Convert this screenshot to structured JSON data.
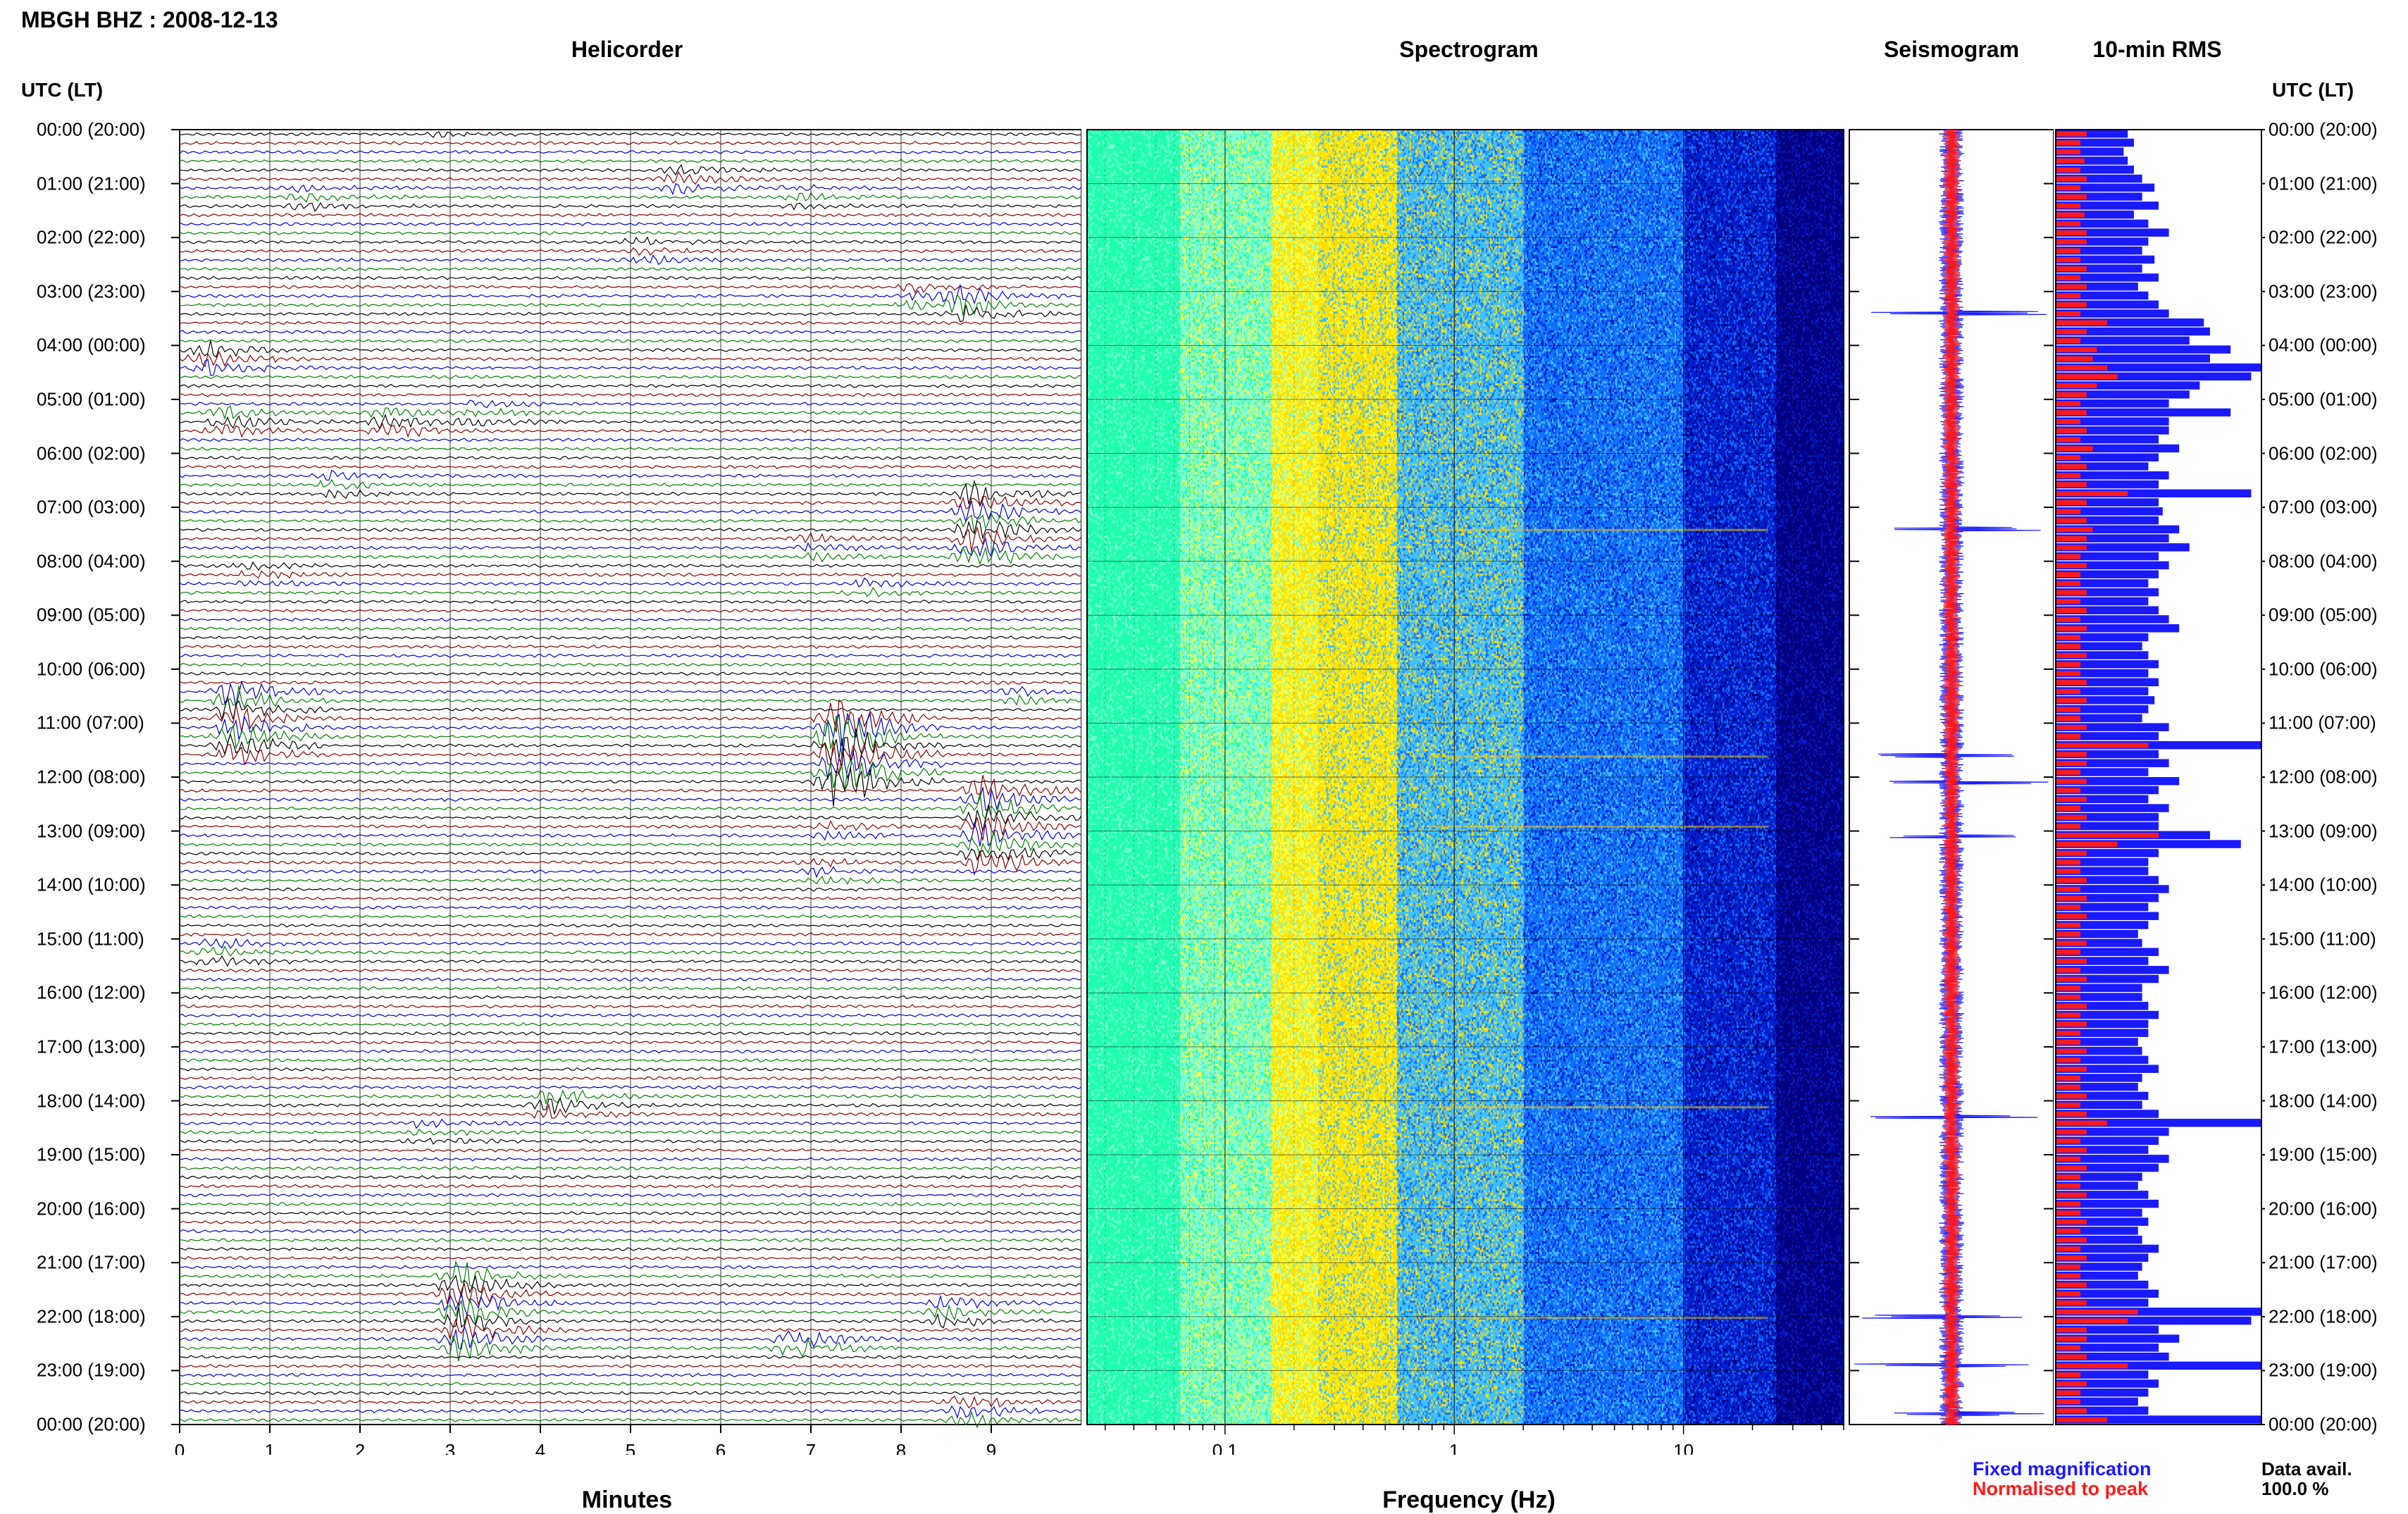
{
  "header": {
    "title": "MBGH BHZ : 2008-12-13",
    "helicorder_title": "Helicorder",
    "spectrogram_title": "Spectrogram",
    "seismogram_title": "Seismogram",
    "rms_title": "10-min RMS",
    "utc_label_left": "UTC (LT)",
    "utc_label_right": "UTC (LT)"
  },
  "time_labels": [
    "00:00 (20:00)",
    "01:00 (21:00)",
    "02:00 (22:00)",
    "03:00 (23:00)",
    "04:00 (00:00)",
    "05:00 (01:00)",
    "06:00 (02:00)",
    "07:00 (03:00)",
    "08:00 (04:00)",
    "09:00 (05:00)",
    "10:00 (06:00)",
    "11:00 (07:00)",
    "12:00 (08:00)",
    "13:00 (09:00)",
    "14:00 (10:00)",
    "15:00 (11:00)",
    "16:00 (12:00)",
    "17:00 (13:00)",
    "18:00 (14:00)",
    "19:00 (15:00)",
    "20:00 (16:00)",
    "21:00 (17:00)",
    "22:00 (18:00)",
    "23:00 (19:00)",
    "00:00 (20:00)"
  ],
  "legend": {
    "fixed": "Fixed magnification",
    "normalised": "Normalised to peak",
    "fixed_color": "#1a1aff",
    "normalised_color": "#ff1a1a"
  },
  "availability": {
    "label": "Data avail.",
    "value": "100.0 %"
  },
  "chart_data": [
    {
      "type": "line",
      "name": "Helicorder",
      "xlabel": "Minutes",
      "xticks": [
        "0",
        "1",
        "2",
        "3",
        "4",
        "5",
        "6",
        "7",
        "8",
        "9"
      ],
      "xlim": [
        0,
        10
      ],
      "trace_colors": [
        "#000000",
        "#8b0000",
        "#0000cd",
        "#008000"
      ],
      "rows_per_hour": 6,
      "events": [
        {
          "hour": 0.0,
          "minute": 2.7,
          "amp": 1.2
        },
        {
          "hour": 0.9,
          "minute": 5.5,
          "amp": 2.0
        },
        {
          "hour": 1.2,
          "minute": 1.4,
          "amp": 1.5
        },
        {
          "hour": 1.3,
          "minute": 6.9,
          "amp": 1.2
        },
        {
          "hour": 2.3,
          "minute": 5.1,
          "amp": 1.5
        },
        {
          "hour": 3.2,
          "minute": 8.7,
          "amp": 3.0
        },
        {
          "hour": 3.1,
          "minute": 8.2,
          "amp": 2.0
        },
        {
          "hour": 4.3,
          "minute": 0.3,
          "amp": 3.0
        },
        {
          "hour": 5.4,
          "minute": 0.5,
          "amp": 2.5
        },
        {
          "hour": 5.4,
          "minute": 2.3,
          "amp": 2.5
        },
        {
          "hour": 5.3,
          "minute": 3.3,
          "amp": 1.5
        },
        {
          "hour": 6.6,
          "minute": 1.7,
          "amp": 1.5
        },
        {
          "hour": 7.3,
          "minute": 8.8,
          "amp": 4.5
        },
        {
          "hour": 7.8,
          "minute": 7.0,
          "amp": 1.5
        },
        {
          "hour": 8.3,
          "minute": 0.8,
          "amp": 1.5
        },
        {
          "hour": 8.5,
          "minute": 7.6,
          "amp": 1.5
        },
        {
          "hour": 10.5,
          "minute": 9.3,
          "amp": 1.5
        },
        {
          "hour": 11.0,
          "minute": 0.6,
          "amp": 5.0
        },
        {
          "hour": 11.5,
          "minute": 7.3,
          "amp": 9.0
        },
        {
          "hour": 12.9,
          "minute": 8.9,
          "amp": 5.0
        },
        {
          "hour": 13.0,
          "minute": 7.2,
          "amp": 1.5
        },
        {
          "hour": 13.7,
          "minute": 7.1,
          "amp": 1.5
        },
        {
          "hour": 15.3,
          "minute": 0.4,
          "amp": 1.8
        },
        {
          "hour": 18.1,
          "minute": 4.1,
          "amp": 3.0
        },
        {
          "hour": 18.6,
          "minute": 2.7,
          "amp": 1.5
        },
        {
          "hour": 21.9,
          "minute": 3.1,
          "amp": 5.0
        },
        {
          "hour": 21.9,
          "minute": 8.5,
          "amp": 2.5
        },
        {
          "hour": 22.5,
          "minute": 6.8,
          "amp": 4.0
        },
        {
          "hour": 23.7,
          "minute": 8.7,
          "amp": 3.0
        }
      ]
    },
    {
      "type": "heatmap",
      "name": "Spectrogram",
      "xlabel": "Frequency (Hz)",
      "xscale": "log",
      "xlim": [
        0.025,
        50
      ],
      "xticks": [
        "0.1",
        "1",
        "10"
      ],
      "colormap": [
        "#20ffb0",
        "#7dffd2",
        "#ffff40",
        "#ffe000",
        "#40c0ff",
        "#1070ff",
        "#0020d0",
        "#000080"
      ]
    },
    {
      "type": "line",
      "name": "Seismogram",
      "series": [
        {
          "name": "Fixed magnification",
          "color": "#1a1aff"
        },
        {
          "name": "Normalised to peak",
          "color": "#ff1a1a"
        }
      ],
      "spikes_hours": [
        3.4,
        7.4,
        11.6,
        12.1,
        13.1,
        18.3,
        22.0,
        22.9,
        23.8
      ]
    },
    {
      "type": "bar",
      "name": "10-min RMS",
      "orientation": "horizontal",
      "series": [
        {
          "name": "Fixed magnification",
          "color": "#1a1aff",
          "values": [
            0.35,
            0.38,
            0.33,
            0.35,
            0.38,
            0.42,
            0.48,
            0.42,
            0.5,
            0.38,
            0.45,
            0.55,
            0.45,
            0.42,
            0.48,
            0.42,
            0.5,
            0.4,
            0.45,
            0.5,
            0.55,
            0.72,
            0.75,
            0.65,
            0.85,
            0.75,
            1.0,
            0.95,
            0.7,
            0.65,
            0.55,
            0.85,
            0.55,
            0.55,
            0.5,
            0.6,
            0.5,
            0.45,
            0.55,
            0.5,
            0.95,
            0.5,
            0.52,
            0.5,
            0.6,
            0.55,
            0.65,
            0.5,
            0.55,
            0.5,
            0.45,
            0.5,
            0.45,
            0.5,
            0.55,
            0.6,
            0.45,
            0.42,
            0.45,
            0.5,
            0.45,
            0.5,
            0.45,
            0.48,
            0.45,
            0.42,
            0.55,
            0.5,
            1.0,
            0.5,
            0.55,
            0.45,
            0.6,
            0.5,
            0.45,
            0.55,
            0.5,
            0.5,
            0.75,
            0.9,
            0.5,
            0.45,
            0.45,
            0.5,
            0.55,
            0.5,
            0.45,
            0.5,
            0.45,
            0.4,
            0.42,
            0.5,
            0.45,
            0.55,
            0.5,
            0.42,
            0.42,
            0.45,
            0.5,
            0.45,
            0.45,
            0.4,
            0.42,
            0.45,
            0.5,
            0.42,
            0.4,
            0.45,
            0.42,
            0.5,
            1.0,
            0.55,
            0.5,
            0.45,
            0.55,
            0.5,
            0.42,
            0.4,
            0.45,
            0.5,
            0.42,
            0.45,
            0.4,
            0.42,
            0.5,
            0.45,
            0.42,
            0.4,
            0.45,
            0.5,
            0.45,
            1.0,
            0.95,
            0.5,
            0.6,
            0.5,
            0.55,
            1.0,
            0.45,
            0.5,
            0.45,
            0.4,
            0.45,
            1.0
          ]
        },
        {
          "name": "Normalised to peak",
          "color": "#ff1a1a",
          "values": [
            0.15,
            0.12,
            0.12,
            0.14,
            0.12,
            0.15,
            0.12,
            0.15,
            0.12,
            0.14,
            0.12,
            0.15,
            0.15,
            0.12,
            0.12,
            0.15,
            0.12,
            0.15,
            0.12,
            0.15,
            0.12,
            0.25,
            0.15,
            0.12,
            0.2,
            0.18,
            0.25,
            0.3,
            0.2,
            0.15,
            0.12,
            0.15,
            0.12,
            0.15,
            0.12,
            0.18,
            0.12,
            0.15,
            0.12,
            0.15,
            0.35,
            0.15,
            0.12,
            0.15,
            0.18,
            0.15,
            0.15,
            0.12,
            0.15,
            0.12,
            0.12,
            0.15,
            0.12,
            0.15,
            0.12,
            0.15,
            0.12,
            0.12,
            0.15,
            0.12,
            0.12,
            0.15,
            0.12,
            0.15,
            0.12,
            0.12,
            0.15,
            0.12,
            0.45,
            0.15,
            0.15,
            0.12,
            0.15,
            0.12,
            0.15,
            0.12,
            0.15,
            0.12,
            0.5,
            0.3,
            0.15,
            0.12,
            0.12,
            0.15,
            0.12,
            0.15,
            0.12,
            0.15,
            0.12,
            0.12,
            0.15,
            0.12,
            0.15,
            0.12,
            0.15,
            0.12,
            0.12,
            0.15,
            0.12,
            0.15,
            0.12,
            0.12,
            0.15,
            0.12,
            0.15,
            0.12,
            0.12,
            0.15,
            0.12,
            0.15,
            0.25,
            0.15,
            0.12,
            0.15,
            0.12,
            0.15,
            0.12,
            0.12,
            0.15,
            0.12,
            0.12,
            0.15,
            0.12,
            0.15,
            0.12,
            0.15,
            0.12,
            0.12,
            0.15,
            0.12,
            0.15,
            0.4,
            0.35,
            0.15,
            0.15,
            0.12,
            0.15,
            0.35,
            0.12,
            0.15,
            0.12,
            0.12,
            0.15,
            0.25
          ]
        }
      ]
    }
  ]
}
